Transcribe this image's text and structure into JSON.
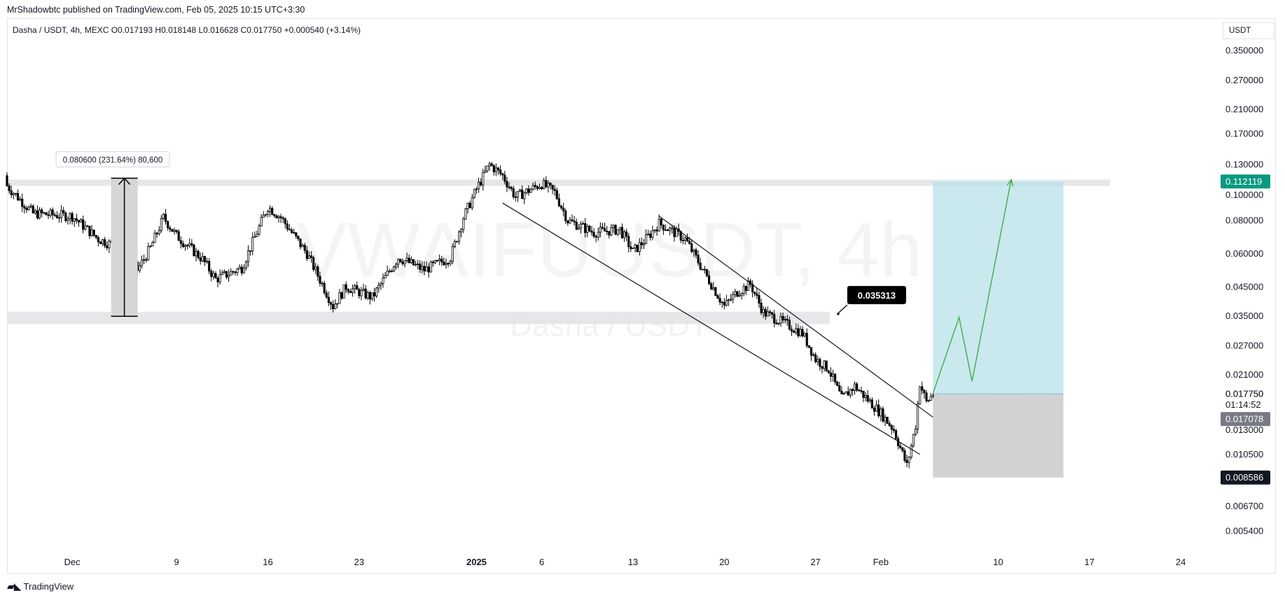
{
  "publisher": "MrShadowbtc published on TradingView.com, Feb 05, 2025 10:15 UTC+3:30",
  "symbol_line": "Dasha / USDT, 4h, MEXC  O0.017193  H0.018148  L0.016628  C0.017750  +0.000540 (+3.14%)",
  "currency": "USDT",
  "footer_logo": "TradingView",
  "colors": {
    "up_candle": "#ffffff",
    "down_candle": "#000000",
    "wick": "#000000",
    "zone": "#e3e3e6",
    "target_fill": "#b2e0e8",
    "stop_fill": "#cdcdd0",
    "path_line": "#4caf50",
    "badge_target": "#089981",
    "badge_current": "#787b86",
    "badge_stop": "#131722"
  },
  "chart_data": {
    "type": "candlestick",
    "timeframe": "4h",
    "y_scale": "log",
    "ylim": [
      0.0047,
      0.4
    ],
    "x_range": [
      "2024-11-26",
      "2025-02-27"
    ],
    "x_ticks": [
      {
        "label": "Dec",
        "date": "2024-12-01"
      },
      {
        "label": "9",
        "date": "2024-12-09"
      },
      {
        "label": "16",
        "date": "2024-12-16"
      },
      {
        "label": "23",
        "date": "2024-12-23"
      },
      {
        "label": "2025",
        "date": "2025-01-01",
        "bold": true
      },
      {
        "label": "6",
        "date": "2025-01-06"
      },
      {
        "label": "13",
        "date": "2025-01-13"
      },
      {
        "label": "20",
        "date": "2025-01-20"
      },
      {
        "label": "27",
        "date": "2025-01-27"
      },
      {
        "label": "Feb",
        "date": "2025-02-01"
      },
      {
        "label": "10",
        "date": "2025-02-10"
      },
      {
        "label": "17",
        "date": "2025-02-17"
      },
      {
        "label": "24",
        "date": "2025-02-24"
      }
    ],
    "y_ticks": [
      "0.350000",
      "0.270000",
      "0.210000",
      "0.170000",
      "0.130000",
      "0.100000",
      "0.080000",
      "0.060000",
      "0.045000",
      "0.035000",
      "0.027000",
      "0.021000",
      "0.017750",
      "0.013000",
      "0.010500",
      "0.006700",
      "0.005400"
    ],
    "price_path": [
      {
        "date": "2024-11-26",
        "price": 0.108
      },
      {
        "date": "2024-11-28",
        "price": 0.085
      },
      {
        "date": "2024-12-01",
        "price": 0.083
      },
      {
        "date": "2024-12-03",
        "price": 0.068
      },
      {
        "date": "2024-12-05",
        "price": 0.062
      },
      {
        "date": "2024-12-06",
        "price": 0.052
      },
      {
        "date": "2024-12-07",
        "price": 0.063
      },
      {
        "date": "2024-12-08",
        "price": 0.082
      },
      {
        "date": "2024-12-09",
        "price": 0.07
      },
      {
        "date": "2024-12-11",
        "price": 0.057
      },
      {
        "date": "2024-12-12",
        "price": 0.048
      },
      {
        "date": "2024-12-14",
        "price": 0.053
      },
      {
        "date": "2024-12-16",
        "price": 0.09
      },
      {
        "date": "2024-12-17",
        "price": 0.082
      },
      {
        "date": "2024-12-19",
        "price": 0.06
      },
      {
        "date": "2024-12-21",
        "price": 0.038
      },
      {
        "date": "2024-12-22",
        "price": 0.045
      },
      {
        "date": "2024-12-24",
        "price": 0.041
      },
      {
        "date": "2024-12-26",
        "price": 0.058
      },
      {
        "date": "2024-12-28",
        "price": 0.052
      },
      {
        "date": "2024-12-30",
        "price": 0.058
      },
      {
        "date": "2024-12-31",
        "price": 0.082
      },
      {
        "date": "2025-01-01",
        "price": 0.105
      },
      {
        "date": "2025-01-02",
        "price": 0.13
      },
      {
        "date": "2025-01-03",
        "price": 0.118
      },
      {
        "date": "2025-01-04",
        "price": 0.098
      },
      {
        "date": "2025-01-06",
        "price": 0.11
      },
      {
        "date": "2025-01-07",
        "price": 0.102
      },
      {
        "date": "2025-01-08",
        "price": 0.08
      },
      {
        "date": "2025-01-10",
        "price": 0.072
      },
      {
        "date": "2025-01-12",
        "price": 0.074
      },
      {
        "date": "2025-01-13",
        "price": 0.061
      },
      {
        "date": "2025-01-14",
        "price": 0.068
      },
      {
        "date": "2025-01-15",
        "price": 0.078
      },
      {
        "date": "2025-01-17",
        "price": 0.068
      },
      {
        "date": "2025-01-19",
        "price": 0.046
      },
      {
        "date": "2025-01-20",
        "price": 0.038
      },
      {
        "date": "2025-01-21",
        "price": 0.043
      },
      {
        "date": "2025-01-22",
        "price": 0.046
      },
      {
        "date": "2025-01-23",
        "price": 0.036
      },
      {
        "date": "2025-01-25",
        "price": 0.032
      },
      {
        "date": "2025-01-26",
        "price": 0.03
      },
      {
        "date": "2025-01-27",
        "price": 0.024
      },
      {
        "date": "2025-01-28",
        "price": 0.022
      },
      {
        "date": "2025-01-29",
        "price": 0.017
      },
      {
        "date": "2025-01-30",
        "price": 0.019
      },
      {
        "date": "2025-02-01",
        "price": 0.015
      },
      {
        "date": "2025-02-02",
        "price": 0.013
      },
      {
        "date": "2025-02-03",
        "price": 0.0095
      },
      {
        "date": "2025-02-03T16:00",
        "price": 0.0135
      },
      {
        "date": "2025-02-04",
        "price": 0.0195
      },
      {
        "date": "2025-02-04T12:00",
        "price": 0.0165
      },
      {
        "date": "2025-02-05",
        "price": 0.01775
      }
    ],
    "zones": [
      {
        "name": "resistance",
        "from": 0.108,
        "to": 0.114
      },
      {
        "name": "support",
        "from": 0.0325,
        "to": 0.0362
      }
    ],
    "measure": {
      "label": "0.080600 (231.64%) 80,600",
      "from_price": 0.0348,
      "to_price": 0.1154,
      "date": "2024-12-05"
    },
    "channel": {
      "lower": [
        {
          "date": "2025-01-03",
          "price": 0.093
        },
        {
          "date": "2025-02-04",
          "price": 0.0105
        }
      ],
      "upper": [
        {
          "date": "2025-01-15",
          "price": 0.083
        },
        {
          "date": "2025-02-05",
          "price": 0.0145
        }
      ]
    },
    "callout": {
      "label": "0.035313",
      "date": "2025-01-29",
      "price": 0.0353
    },
    "position": {
      "entry": 0.01775,
      "target": 0.112119,
      "stop": 0.008586,
      "from_date": "2025-02-05",
      "to_date": "2025-02-15"
    },
    "projection": [
      {
        "date": "2025-02-05",
        "price": 0.0178
      },
      {
        "date": "2025-02-07",
        "price": 0.0345
      },
      {
        "date": "2025-02-08",
        "price": 0.0198
      },
      {
        "date": "2025-02-11",
        "price": 0.114
      }
    ],
    "price_badges": [
      {
        "label": "0.112119",
        "role": "target"
      },
      {
        "label": "0.017750",
        "role": "current-label"
      },
      {
        "label": "01:14:52",
        "role": "countdown"
      },
      {
        "label": "0.017078",
        "role": "current"
      },
      {
        "label": "0.008586",
        "role": "stop"
      }
    ],
    "watermark": {
      "main": "VWAIFUUSDT, 4h",
      "sub": "Dasha / USDT"
    }
  }
}
